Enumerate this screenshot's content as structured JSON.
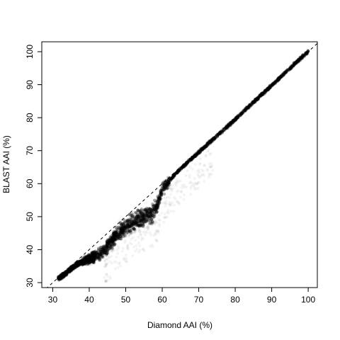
{
  "chart_data": {
    "type": "scatter",
    "title": "",
    "xlabel": "Diamond AAI (%)",
    "ylabel": "BLAST AAI (%)",
    "xlim": [
      27,
      102.5
    ],
    "ylim": [
      28.5,
      103
    ],
    "x_ticks": [
      30,
      40,
      50,
      60,
      70,
      80,
      90,
      100
    ],
    "y_ticks": [
      30,
      40,
      50,
      60,
      70,
      80,
      90,
      100
    ],
    "reference_line": {
      "style": "dashed",
      "from": [
        27,
        27
      ],
      "to": [
        102.5,
        102.5
      ]
    },
    "point_color": "#000000",
    "grid": false,
    "legend": "none",
    "density_ridge": [
      {
        "x": 31.5,
        "y": 31.2
      },
      {
        "x": 33,
        "y": 32.3
      },
      {
        "x": 35,
        "y": 34.2
      },
      {
        "x": 37,
        "y": 35.8
      },
      {
        "x": 39,
        "y": 36.8
      },
      {
        "x": 41,
        "y": 37.6
      },
      {
        "x": 43,
        "y": 38.8
      },
      {
        "x": 45,
        "y": 41.0
      },
      {
        "x": 47,
        "y": 43.8
      },
      {
        "x": 49,
        "y": 46.0
      },
      {
        "x": 51,
        "y": 47.8
      },
      {
        "x": 53,
        "y": 49.0
      },
      {
        "x": 55,
        "y": 49.8
      },
      {
        "x": 57,
        "y": 51.0
      },
      {
        "x": 58.5,
        "y": 53.0
      },
      {
        "x": 60,
        "y": 58.5
      },
      {
        "x": 62,
        "y": 61.0
      },
      {
        "x": 65,
        "y": 64.5
      },
      {
        "x": 68,
        "y": 67.5
      },
      {
        "x": 70,
        "y": 69.5
      },
      {
        "x": 75,
        "y": 74.5
      },
      {
        "x": 80,
        "y": 79.5
      },
      {
        "x": 85,
        "y": 84.7
      },
      {
        "x": 90,
        "y": 89.8
      },
      {
        "x": 95,
        "y": 95.0
      },
      {
        "x": 100,
        "y": 100.0
      }
    ]
  }
}
